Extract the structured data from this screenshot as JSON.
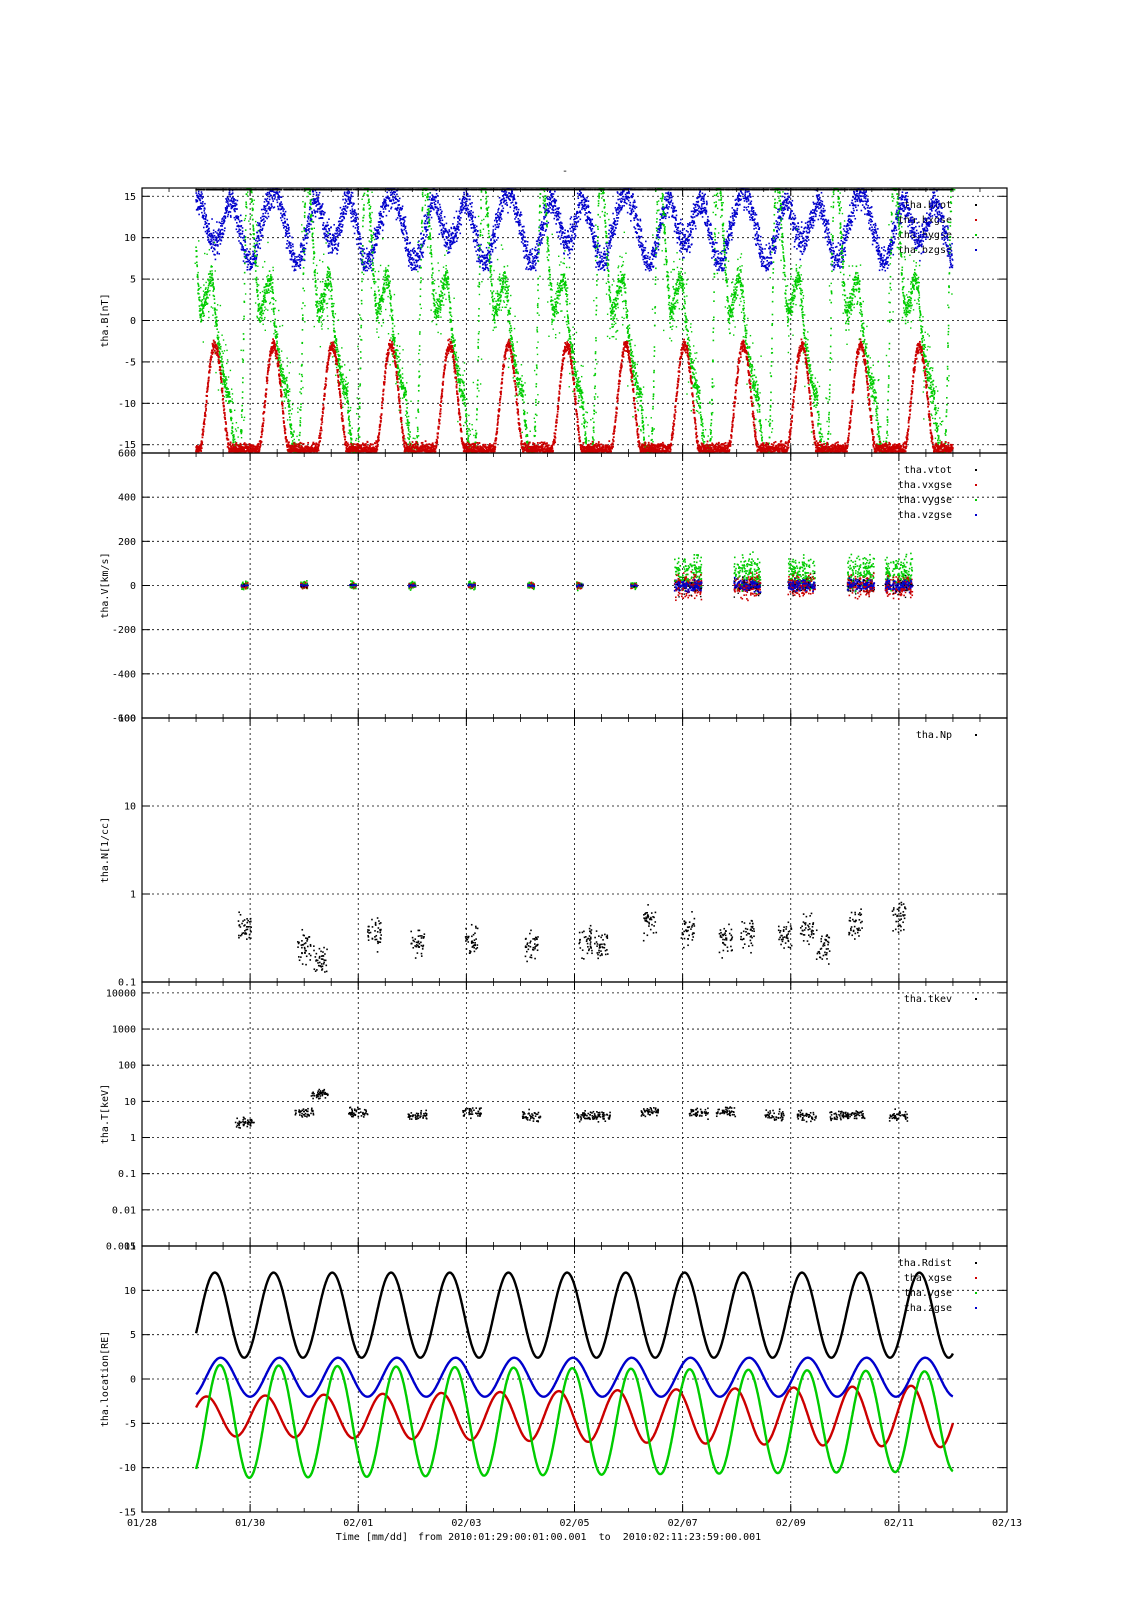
{
  "page": {
    "title": "-",
    "xlabel": "Time [mm/dd]",
    "range_text": "from 2010:01:29:00:01:00.001  to  2010:02:11:23:59:00.001"
  },
  "colors": {
    "black": "#000000",
    "red": "#cc0000",
    "green": "#00cc00",
    "blue": "#0000cc",
    "grid": "#000000"
  },
  "x_axis": {
    "range": [
      "01/28",
      "02/13"
    ],
    "ticks": [
      "01/28",
      "01/30",
      "02/01",
      "02/03",
      "02/05",
      "02/07",
      "02/09",
      "02/11",
      "02/13"
    ],
    "start_date": "2010-01-28",
    "end_date": "2010-02-13",
    "data_start": "2010-01-29",
    "data_end": "2010-02-12"
  },
  "chart_data": [
    {
      "type": "scatter",
      "ylabel": "tha.B[nT]",
      "ylim": [
        -16,
        16
      ],
      "yticks": [
        "15",
        "10",
        "5",
        "0",
        "-5",
        "-10",
        "-15"
      ],
      "grid": true,
      "legend": "top-right",
      "series": [
        {
          "name": "tha.btot",
          "color": "black"
        },
        {
          "name": "tha.bxgse",
          "color": "red"
        },
        {
          "name": "tha.bygse",
          "color": "green"
        },
        {
          "name": "tha.bzgse",
          "color": "blue"
        }
      ]
    },
    {
      "type": "scatter",
      "ylabel": "tha.V[km/s]",
      "ylim": [
        -600,
        600
      ],
      "yticks": [
        "600",
        "400",
        "200",
        "0",
        "-200",
        "-400",
        "-600"
      ],
      "grid": true,
      "legend": "top-right",
      "series": [
        {
          "name": "tha.vtot",
          "color": "black"
        },
        {
          "name": "tha.vxgse",
          "color": "red"
        },
        {
          "name": "tha.vygse",
          "color": "green"
        },
        {
          "name": "tha.vzgse",
          "color": "blue"
        }
      ]
    },
    {
      "type": "scatter",
      "ylabel": "tha.N[1/cc]",
      "ylim": [
        0.1,
        100
      ],
      "log_scale": true,
      "yticks": [
        "100",
        "10",
        "1",
        "0.1"
      ],
      "grid": true,
      "legend": "top-right",
      "series": [
        {
          "name": "tha.Np",
          "color": "black"
        }
      ]
    },
    {
      "type": "scatter",
      "ylabel": "tha.T[keV]",
      "ylim": [
        0.001,
        20000
      ],
      "log_scale": true,
      "yticks": [
        "10000",
        "1000",
        "100",
        "10",
        "1",
        "0.1",
        "0.01",
        "0.001"
      ],
      "grid": true,
      "legend": "top-right",
      "series": [
        {
          "name": "tha.tkev",
          "color": "black"
        }
      ]
    },
    {
      "type": "line",
      "ylabel": "tha.location[RE]",
      "ylim": [
        -15,
        15
      ],
      "yticks": [
        "15",
        "10",
        "5",
        "0",
        "-5",
        "-10",
        "-15"
      ],
      "grid": true,
      "legend": "top-right",
      "series": [
        {
          "name": "tha.Rdist",
          "color": "black"
        },
        {
          "name": "tha.xgse",
          "color": "red"
        },
        {
          "name": "tha.ygse",
          "color": "green"
        },
        {
          "name": "tha.zgse",
          "color": "blue"
        }
      ]
    }
  ]
}
